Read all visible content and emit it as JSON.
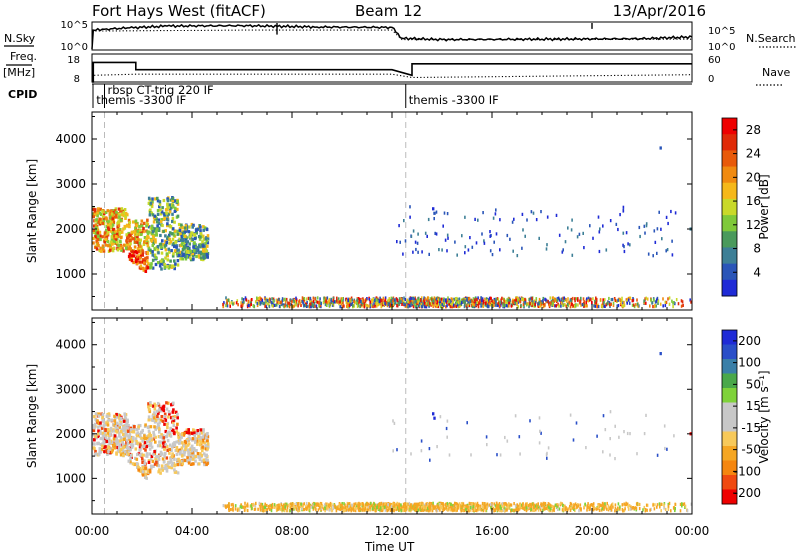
{
  "header": {
    "station": "Fort Hays West (fitACF)",
    "beam": "Beam 12",
    "date": "13/Apr/2016"
  },
  "left_labels": {
    "nsky": "N.Sky",
    "freq": "Freq.",
    "freq_unit": "[MHz]",
    "cpid": "CPID"
  },
  "right_labels": {
    "nsearch": "N.Search",
    "nave": "Nave"
  },
  "time_axis": {
    "title": "Time UT",
    "ticks": [
      "00:00",
      "04:00",
      "08:00",
      "12:00",
      "16:00",
      "20:00",
      "00:00"
    ]
  },
  "colors": {
    "power_scale": [
      "#1f2bd6",
      "#2a55b8",
      "#3d7f96",
      "#4a9a5c",
      "#7fc93a",
      "#c9d92a",
      "#f5b81a",
      "#f08a10",
      "#e85a0a",
      "#e02a08",
      "#ee0000"
    ],
    "velocity_scale": [
      "#ee0000",
      "#f04a10",
      "#f5860f",
      "#f5a623",
      "#f7c95a",
      "#c8c8c8",
      "#c8c8c8",
      "#7fd23a",
      "#4aa84a",
      "#3a7fa8",
      "#2a4fc8",
      "#1f2bd6"
    ],
    "ground_gray": "#bfbfbf"
  },
  "chart_data": [
    {
      "type": "line",
      "name": "noise",
      "ylabel": "N.Sky",
      "right_label": "N.Search",
      "y_ticks_left": [
        "10^5",
        "10^0"
      ],
      "y_ticks_right": [
        "10^5",
        "10^0"
      ],
      "series": [
        {
          "name": "N.Sky",
          "style": "solid",
          "x_hours": [
            0.0,
            0.05,
            0.5,
            1.5,
            3.0,
            6.0,
            9.0,
            12.0,
            12.4,
            14.0,
            18.0,
            22.0,
            24.0
          ],
          "y_log": [
            0.2,
            4.4,
            4.6,
            4.9,
            5.3,
            5.4,
            5.1,
            5.0,
            2.6,
            2.3,
            2.4,
            2.5,
            2.9
          ]
        },
        {
          "name": "N.Search",
          "style": "dotted",
          "x_hours": [
            0.0,
            6.0,
            12.0,
            12.4,
            18.0,
            24.0
          ],
          "y_log": [
            4.2,
            4.4,
            4.4,
            2.3,
            2.3,
            2.4
          ]
        }
      ],
      "spikes": [
        {
          "x_hours": 7.4,
          "y_log": 6.2
        },
        {
          "x_hours": 20.0,
          "y_log": 8.5
        }
      ]
    },
    {
      "type": "line",
      "name": "frequency",
      "ylabel": "Freq. [MHz]",
      "right_label": "Nave",
      "y_ticks_left": [
        18,
        8
      ],
      "y_ticks_right": [
        60,
        0
      ],
      "series": [
        {
          "name": "Freq",
          "style": "solid",
          "x_hours": [
            0.0,
            0.05,
            0.05,
            1.75,
            1.75,
            12.0,
            12.8,
            12.8,
            24.0
          ],
          "y": [
            8.0,
            8.0,
            15.0,
            15.0,
            12.4,
            12.4,
            10.4,
            14.5,
            14.5
          ]
        },
        {
          "name": "Nave",
          "style": "dotted",
          "x_hours": [
            0.0,
            0.05,
            1.75,
            12.0,
            12.8,
            24.0
          ],
          "y": [
            9.6,
            10.4,
            10.8,
            10.8,
            9.6,
            10.6
          ]
        }
      ]
    },
    {
      "type": "table",
      "name": "cpid",
      "entries": [
        {
          "x_hours": 0.5,
          "text": "rbsp CT-trig 220 IF",
          "row": 0
        },
        {
          "x_hours": 0.05,
          "text": "themis -3300 IF",
          "row": 1
        },
        {
          "x_hours": 12.55,
          "text": "themis -3300 IF",
          "row": 1
        }
      ],
      "boundaries_hours": [
        0.5,
        12.55
      ]
    },
    {
      "type": "heatmap",
      "name": "power",
      "ylabel": "Slant Range [km]",
      "y_ticks": [
        1000,
        2000,
        3000,
        4000
      ],
      "ylim": [
        200,
        4600
      ],
      "xlim_hours": [
        0,
        24
      ],
      "colorbar": {
        "label": "Power [dB]",
        "ticks": [
          4,
          8,
          12,
          16,
          20,
          24,
          28
        ],
        "range": [
          0,
          30
        ]
      },
      "series": [
        {
          "name": "near_range_ground",
          "x_hours": [
            5.5,
            24.0
          ],
          "range_km": [
            280,
            420
          ],
          "mean": 9
        },
        {
          "name": "morning_echo",
          "x_hours": [
            0.0,
            4.5
          ],
          "range_km": [
            900,
            2600
          ],
          "mean": 20
        },
        {
          "name": "scattered_far",
          "x_hours": [
            12.0,
            24.0
          ],
          "range_km": [
            1500,
            2500
          ],
          "mean": 6
        }
      ]
    },
    {
      "type": "heatmap",
      "name": "velocity",
      "ylabel": "Slant Range [km]",
      "y_ticks": [
        1000,
        2000,
        3000,
        4000
      ],
      "ylim": [
        200,
        4600
      ],
      "xlim_hours": [
        0,
        24
      ],
      "colorbar": {
        "label": "Velocity [m s⁻¹]",
        "ticks": [
          200,
          100,
          50,
          15,
          -15,
          -50,
          -100,
          -200
        ],
        "range": [
          -250,
          250
        ]
      },
      "series": [
        {
          "name": "near_range_ground",
          "x_hours": [
            5.5,
            24.0
          ],
          "range_km": [
            280,
            420
          ],
          "mean": -30
        },
        {
          "name": "morning_echo",
          "x_hours": [
            0.0,
            4.5
          ],
          "range_km": [
            900,
            2600
          ],
          "mean": -10
        },
        {
          "name": "scattered_far",
          "x_hours": [
            12.0,
            24.0
          ],
          "range_km": [
            1500,
            2500
          ],
          "mean": 5
        }
      ]
    }
  ]
}
